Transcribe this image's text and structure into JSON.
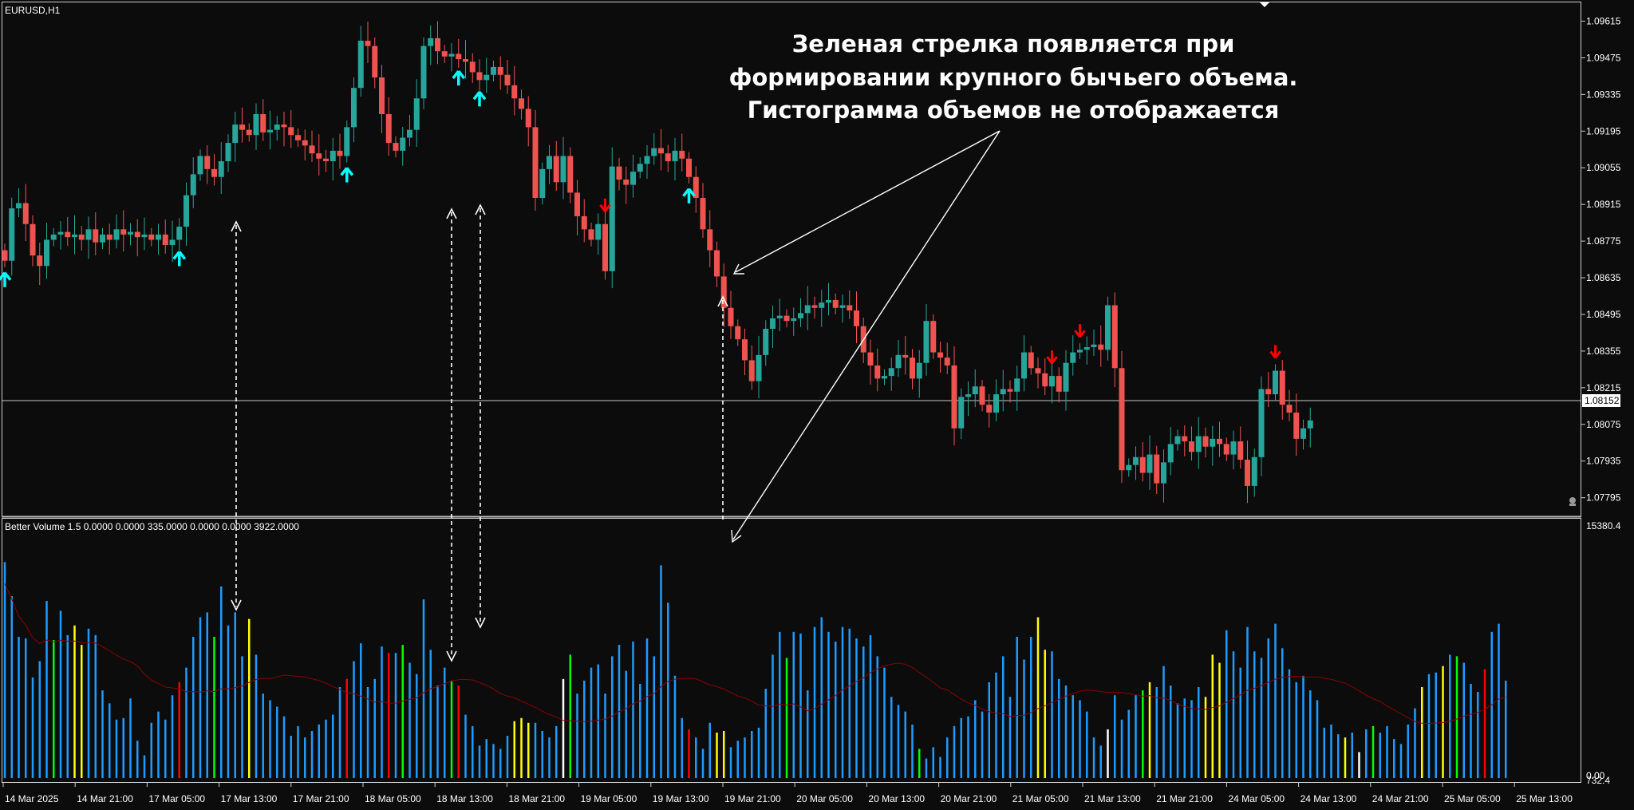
{
  "window": {
    "symbol_label": "EURUSD,H1",
    "indicator_label": "Better Volume 1.5 0.0000 0.0000 335.0000 0.0000 0.0000 3922.0000"
  },
  "annotation": {
    "lines": [
      "Зеленая стрелка появляется при",
      "формировании крупного бычьего объема.",
      "Гистограмма объемов не отображается"
    ]
  },
  "colors": {
    "background": "#0c0c0c",
    "bull": "#26a69a",
    "bear": "#ef5350",
    "arrow_up": "#00ffff",
    "arrow_down": "#ff0000",
    "volume_blue": "#1e9bff",
    "volume_red": "#ff0000",
    "volume_green": "#00ff00",
    "volume_white": "#ffffff",
    "volume_yellow": "#ffff00",
    "ma_line": "#8b0000"
  },
  "chart_data": [
    {
      "type": "candlestick",
      "symbol": "EURUSD",
      "timeframe": "H1",
      "price_axis_labels": [
        "1.09615",
        "1.09475",
        "1.09335",
        "1.09195",
        "1.09055",
        "1.08915",
        "1.08775",
        "1.08635",
        "1.08495",
        "1.08355",
        "1.08215",
        "1.08075",
        "1.07935",
        "1.07795"
      ],
      "ylim": [
        1.0773,
        1.0965
      ],
      "current_price": "1.08152",
      "time_axis_labels": [
        "14 Mar 2025",
        "14 Mar 21:00",
        "17 Mar 05:00",
        "17 Mar 13:00",
        "17 Mar 21:00",
        "18 Mar 05:00",
        "18 Mar 13:00",
        "18 Mar 21:00",
        "19 Mar 05:00",
        "19 Mar 13:00",
        "19 Mar 21:00",
        "20 Mar 05:00",
        "20 Mar 13:00",
        "20 Mar 21:00",
        "21 Mar 05:00",
        "21 Mar 13:00",
        "21 Mar 21:00",
        "24 Mar 05:00",
        "24 Mar 13:00",
        "24 Mar 21:00",
        "25 Mar 05:00",
        "25 Mar 13:00"
      ],
      "closes": [
        1.087,
        1.089,
        1.0892,
        1.0884,
        1.0872,
        1.0868,
        1.0878,
        1.088,
        1.0881,
        1.0879,
        1.088,
        1.0878,
        1.0882,
        1.0877,
        1.088,
        1.0878,
        1.0882,
        1.088,
        1.0881,
        1.0879,
        1.088,
        1.0878,
        1.088,
        1.0876,
        1.0878,
        1.0883,
        1.0895,
        1.0903,
        1.091,
        1.0905,
        1.0902,
        1.0908,
        1.0915,
        1.0922,
        1.092,
        1.0918,
        1.0926,
        1.0919,
        1.092,
        1.0922,
        1.0921,
        1.0918,
        1.0916,
        1.0914,
        1.0911,
        1.0909,
        1.0908,
        1.0912,
        1.091,
        1.0921,
        1.0936,
        1.0954,
        1.0952,
        1.094,
        1.0926,
        1.0915,
        1.0912,
        1.0917,
        1.092,
        1.0932,
        1.0952,
        1.0955,
        1.095,
        1.0948,
        1.0949,
        1.0947,
        1.0946,
        1.0942,
        1.0939,
        1.0941,
        1.0944,
        1.0941,
        1.0937,
        1.0932,
        1.0928,
        1.0921,
        1.0894,
        1.0905,
        1.091,
        1.09,
        1.091,
        1.0896,
        1.0887,
        1.0882,
        1.0878,
        1.0884,
        1.0866,
        1.0906,
        1.0901,
        1.0899,
        1.0904,
        1.0907,
        1.091,
        1.0913,
        1.0911,
        1.0908,
        1.0912,
        1.0909,
        1.0902,
        1.0894,
        1.0882,
        1.0874,
        1.0864,
        1.0852,
        1.0845,
        1.084,
        1.0832,
        1.0824,
        1.0834,
        1.0844,
        1.0848,
        1.0849,
        1.0847,
        1.0848,
        1.085,
        1.0853,
        1.0852,
        1.0854,
        1.0855,
        1.0852,
        1.0853,
        1.0851,
        1.0845,
        1.0835,
        1.083,
        1.0825,
        1.0826,
        1.0829,
        1.0834,
        1.0833,
        1.0825,
        1.0831,
        1.0847,
        1.0835,
        1.0833,
        1.083,
        1.0806,
        1.0818,
        1.0819,
        1.0822,
        1.0815,
        1.0812,
        1.0819,
        1.0821,
        1.082,
        1.0825,
        1.0835,
        1.0829,
        1.0827,
        1.0822,
        1.0826,
        1.082,
        1.0831,
        1.0835,
        1.0836,
        1.0837,
        1.0838,
        1.0836,
        1.0853,
        1.0829,
        1.079,
        1.0792,
        1.0795,
        1.0789,
        1.0796,
        1.0785,
        1.0793,
        1.08,
        1.0803,
        1.0801,
        1.0797,
        1.0803,
        1.0799,
        1.0802,
        1.08,
        1.0796,
        1.0801,
        1.0794,
        1.0784,
        1.0795,
        1.0821,
        1.0819,
        1.0828,
        1.0815,
        1.0812,
        1.0802,
        1.0806,
        1.0809
      ]
    },
    {
      "type": "bar",
      "name": "Better Volume 1.5",
      "ylim": [
        0,
        15380.4
      ],
      "axis_labels": [
        "15380.4",
        "732.4",
        "0.00"
      ],
      "values": [
        13300,
        11200,
        8700,
        8600,
        6200,
        7200,
        10900,
        8500,
        10300,
        8800,
        9400,
        8200,
        9200,
        8800,
        5400,
        4600,
        3600,
        3700,
        4900,
        2300,
        1400,
        3400,
        4100,
        3600,
        5100,
        5900,
        6800,
        8700,
        9900,
        10200,
        8700,
        11800,
        9400,
        10200,
        7500,
        9800,
        7600,
        5200,
        4800,
        4400,
        3800,
        2600,
        3200,
        2500,
        2900,
        3300,
        3600,
        3900,
        5600,
        6100,
        7200,
        8300,
        5600,
        6100,
        8100,
        7700,
        7700,
        8200,
        7100,
        6400,
        11000,
        7900,
        5700,
        6800,
        6000,
        5700,
        3900,
        3200,
        2000,
        2400,
        2100,
        1800,
        2600,
        3500,
        3700,
        3400,
        3400,
        2900,
        2500,
        3200,
        6100,
        7600,
        5200,
        6000,
        6800,
        7000,
        5200,
        7500,
        8200,
        6600,
        8400,
        5800,
        8600,
        7500,
        13100,
        10800,
        6300,
        3700,
        3000,
        2500,
        1800,
        3400,
        2800,
        2900,
        1900,
        2300,
        2500,
        2900,
        3100,
        5500,
        7600,
        9000,
        7400,
        9000,
        8900,
        5400,
        9300,
        9900,
        9000,
        8400,
        9300,
        9200,
        8600,
        8100,
        8800,
        7500,
        6800,
        5000,
        4500,
        4100,
        3300,
        1800,
        1200,
        1900,
        1300,
        2500,
        3200,
        3700,
        3800,
        4800,
        4100,
        5900,
        6500,
        7500,
        5000,
        8700,
        7300,
        8700,
        9900,
        7900,
        7800,
        6100,
        5700,
        5100,
        4800,
        4100,
        2500,
        2000,
        3000,
        5100,
        3600,
        4200,
        5100,
        5400,
        5900,
        5600,
        6900,
        5700,
        4600,
        4900,
        4800,
        5600,
        5000,
        7600,
        7100,
        9100,
        7800,
        6800,
        9300,
        7800,
        7400,
        8600,
        9500,
        8000,
        6700,
        5900,
        6300,
        5400,
        4800,
        3100,
        3300,
        2700,
        2500,
        2800,
        1600,
        3000,
        3200,
        2800,
        3200,
        2400,
        2100,
        3300,
        4300,
        5600,
        6400,
        6500,
        6900,
        7600,
        7500,
        7100,
        5800,
        5300,
        6700,
        9000,
        9500,
        6000
      ]
    }
  ]
}
